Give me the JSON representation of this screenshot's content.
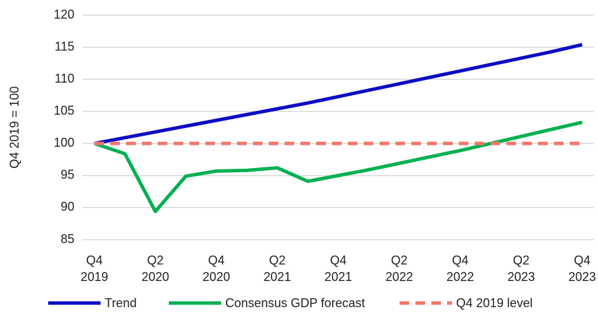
{
  "chart_data": {
    "type": "line",
    "y_label": "Q4 2019 = 100",
    "categories": [
      "Q4 2019",
      null,
      "Q2 2020",
      null,
      "Q4 2020",
      null,
      "Q2 2021",
      null,
      "Q4 2021",
      null,
      "Q2 2022",
      null,
      "Q4 2022",
      null,
      "Q2 2023",
      null,
      "Q4 2023"
    ],
    "series": [
      {
        "name": "Trend",
        "color": "#0c0cc4",
        "dash": false,
        "values": [
          100,
          100.9,
          101.8,
          102.7,
          103.6,
          104.5,
          105.4,
          106.3,
          107.3,
          108.3,
          109.3,
          110.3,
          111.3,
          112.3,
          113.3,
          114.3,
          115.4
        ]
      },
      {
        "name": "Consensus GDP forecast",
        "color": "#00b050",
        "dash": false,
        "values": [
          100,
          98.4,
          89.4,
          94.9,
          95.7,
          95.8,
          96.2,
          94.1,
          95.0,
          95.9,
          96.9,
          97.9,
          98.9,
          100.0,
          101.1,
          102.2,
          103.3
        ]
      },
      {
        "name": "Q4 2019 level",
        "color": "#f4776a",
        "dash": true,
        "values": [
          100,
          100,
          100,
          100,
          100,
          100,
          100,
          100,
          100,
          100,
          100,
          100,
          100,
          100,
          100,
          100,
          100
        ]
      }
    ],
    "ylim": [
      85,
      120
    ],
    "yticks": [
      85,
      90,
      95,
      100,
      105,
      110,
      115,
      120
    ],
    "grid": true
  }
}
